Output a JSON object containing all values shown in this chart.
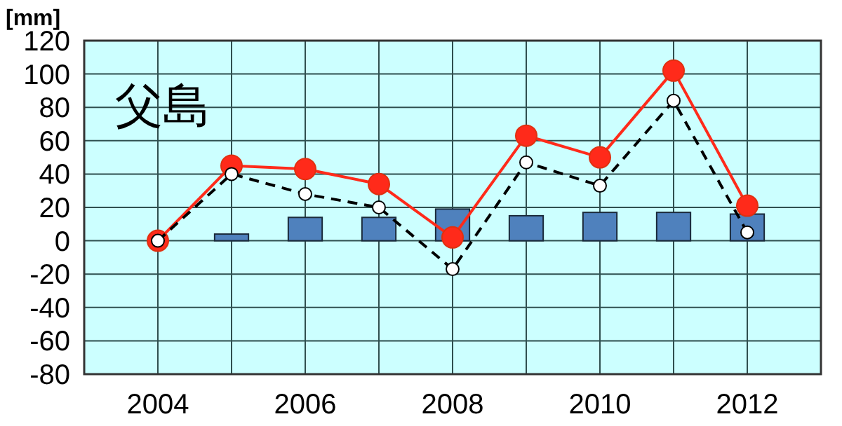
{
  "chart_data": {
    "type": "line",
    "title": "父島",
    "ylabel": "[mm]",
    "x": [
      2004,
      2005,
      2006,
      2007,
      2008,
      2009,
      2010,
      2011,
      2012
    ],
    "xlim": [
      2003,
      2013
    ],
    "xticks": [
      2004,
      {
        "value": 2005,
        "label": null
      },
      2006,
      {
        "value": 2007,
        "label": null
      },
      2008,
      {
        "value": 2009,
        "label": null
      },
      2010,
      {
        "value": 2011,
        "label": null
      },
      2012
    ],
    "ylim": [
      -80,
      120
    ],
    "yticks": [
      -80,
      -60,
      -40,
      -20,
      0,
      20,
      40,
      60,
      80,
      100,
      120
    ],
    "grid": true,
    "series": [
      {
        "type": "bar",
        "color": "#4f81bd",
        "values": [
          0,
          4,
          14,
          14,
          19,
          15,
          17,
          17,
          16
        ]
      },
      {
        "type": "line",
        "color": "#ff2a1a",
        "marker": "circle",
        "line_style": "solid",
        "values": [
          0,
          45,
          43,
          34,
          2,
          63,
          50,
          102,
          21
        ]
      },
      {
        "type": "line",
        "color": "#000000",
        "marker": "circle",
        "line_style": "dashed",
        "values": [
          0,
          40,
          28,
          20,
          -17,
          47,
          33,
          84,
          5
        ]
      }
    ]
  }
}
